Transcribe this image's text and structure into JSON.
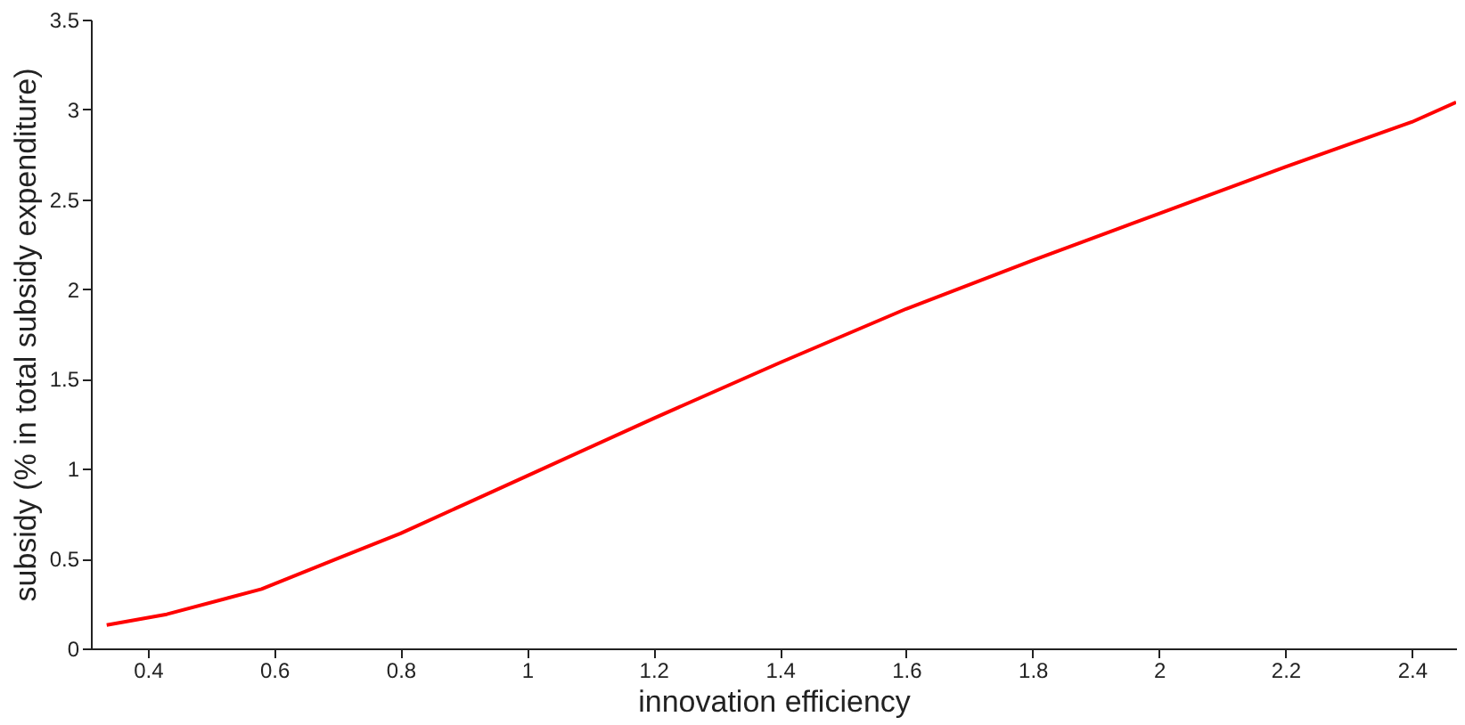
{
  "chart_data": {
    "type": "line",
    "xlabel": "innovation efficiency",
    "ylabel": "subsidy (% in total subsidy expenditure)",
    "x": [
      0.335,
      0.43,
      0.58,
      0.7,
      0.8,
      0.9,
      1.0,
      1.2,
      1.4,
      1.6,
      1.8,
      2.0,
      2.2,
      2.4,
      2.47
    ],
    "series": [
      {
        "color": "#ff0000",
        "values": [
          0.13,
          0.19,
          0.33,
          0.5,
          0.64,
          0.8,
          0.96,
          1.28,
          1.59,
          1.89,
          2.16,
          2.42,
          2.68,
          2.93,
          3.04
        ]
      }
    ],
    "xlim": [
      0.31,
      2.47
    ],
    "xticks": [
      0.4,
      0.6,
      0.8,
      1,
      1.2,
      1.4,
      1.6,
      1.8,
      2,
      2.2,
      2.4
    ],
    "ylim": [
      0,
      3.5
    ],
    "yticks": [
      0,
      0.5,
      1,
      1.5,
      2,
      2.5,
      3,
      3.5
    ],
    "grid": false,
    "marker": "none",
    "line_style": "solid"
  }
}
